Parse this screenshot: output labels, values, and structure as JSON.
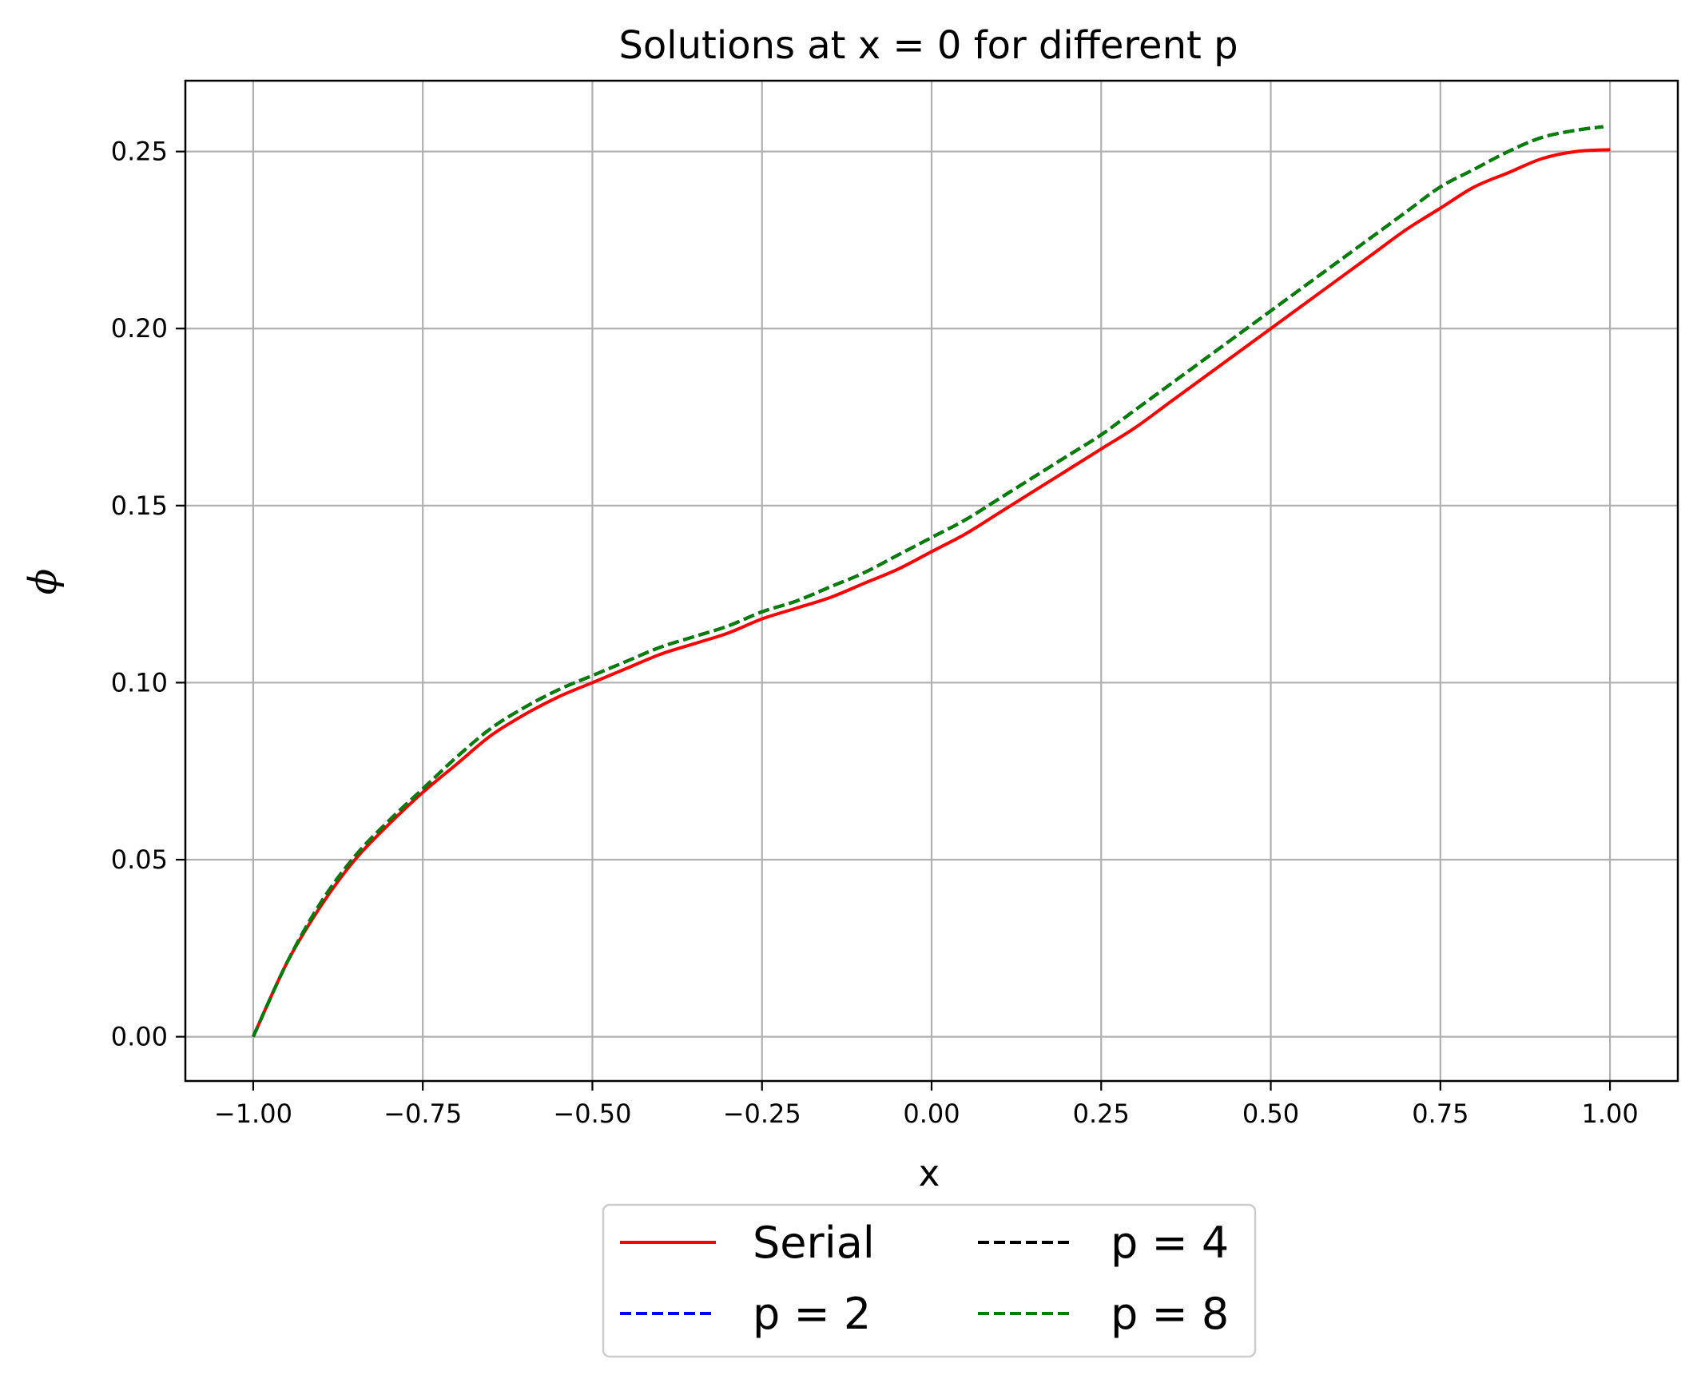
{
  "chart_data": {
    "type": "line",
    "title": "Solutions at x = 0 for different p",
    "xlabel": "x",
    "ylabel": "ϕ",
    "xlim": [
      -1.1,
      1.1
    ],
    "ylim": [
      -0.0125,
      0.27
    ],
    "xticks": [
      -1.0,
      -0.75,
      -0.5,
      -0.25,
      0.0,
      0.25,
      0.5,
      0.75,
      1.0
    ],
    "xtick_labels": [
      "−1.00",
      "−0.75",
      "−0.50",
      "−0.25",
      "0.00",
      "0.25",
      "0.50",
      "0.75",
      "1.00"
    ],
    "yticks": [
      0.0,
      0.05,
      0.1,
      0.15,
      0.2,
      0.25
    ],
    "ytick_labels": [
      "0.00",
      "0.05",
      "0.10",
      "0.15",
      "0.20",
      "0.25"
    ],
    "grid": true,
    "legend": {
      "placement": "below-center",
      "columns": 2
    },
    "series": [
      {
        "name": "Serial",
        "color": "#ff0000",
        "style": "solid",
        "x": [
          -1.0,
          -0.95,
          -0.9,
          -0.85,
          -0.8,
          -0.75,
          -0.7,
          -0.65,
          -0.6,
          -0.55,
          -0.5,
          -0.45,
          -0.4,
          -0.35,
          -0.3,
          -0.25,
          -0.2,
          -0.15,
          -0.1,
          -0.05,
          0.0,
          0.05,
          0.1,
          0.15,
          0.2,
          0.25,
          0.3,
          0.35,
          0.4,
          0.45,
          0.5,
          0.55,
          0.6,
          0.65,
          0.7,
          0.75,
          0.8,
          0.85,
          0.9,
          0.95,
          1.0
        ],
        "y": [
          0.0,
          0.021,
          0.037,
          0.05,
          0.06,
          0.069,
          0.077,
          0.085,
          0.091,
          0.096,
          0.1,
          0.104,
          0.108,
          0.111,
          0.114,
          0.118,
          0.121,
          0.124,
          0.128,
          0.132,
          0.137,
          0.142,
          0.148,
          0.154,
          0.16,
          0.166,
          0.172,
          0.179,
          0.186,
          0.193,
          0.2,
          0.207,
          0.214,
          0.221,
          0.228,
          0.234,
          0.24,
          0.244,
          0.248,
          0.25,
          0.2505
        ]
      },
      {
        "name": "p = 2",
        "color": "#0000ff",
        "style": "dashed",
        "x": [
          -1.0,
          -0.95,
          -0.9,
          -0.85,
          -0.8,
          -0.75,
          -0.7,
          -0.65,
          -0.6,
          -0.55,
          -0.5,
          -0.45,
          -0.4,
          -0.35,
          -0.3,
          -0.25,
          -0.2,
          -0.15,
          -0.1,
          -0.05,
          0.0,
          0.05,
          0.1,
          0.15,
          0.2,
          0.25,
          0.3,
          0.35,
          0.4,
          0.45,
          0.5,
          0.55,
          0.6,
          0.65,
          0.7,
          0.75,
          0.8,
          0.85,
          0.9,
          0.95,
          0.99
        ],
        "y": [
          0.0,
          0.021,
          0.038,
          0.051,
          0.061,
          0.07,
          0.079,
          0.087,
          0.093,
          0.098,
          0.102,
          0.106,
          0.11,
          0.113,
          0.116,
          0.12,
          0.123,
          0.127,
          0.131,
          0.136,
          0.141,
          0.146,
          0.152,
          0.158,
          0.164,
          0.17,
          0.177,
          0.184,
          0.191,
          0.198,
          0.205,
          0.212,
          0.219,
          0.226,
          0.233,
          0.24,
          0.245,
          0.25,
          0.254,
          0.256,
          0.257
        ]
      },
      {
        "name": "p = 4",
        "color": "#000000",
        "style": "dashed",
        "x": [
          -1.0,
          -0.95,
          -0.9,
          -0.85,
          -0.8,
          -0.75,
          -0.7,
          -0.65,
          -0.6,
          -0.55,
          -0.5,
          -0.45,
          -0.4,
          -0.35,
          -0.3,
          -0.25,
          -0.2,
          -0.15,
          -0.1,
          -0.05,
          0.0,
          0.05,
          0.1,
          0.15,
          0.2,
          0.25,
          0.3,
          0.35,
          0.4,
          0.45,
          0.5,
          0.55,
          0.6,
          0.65,
          0.7,
          0.75,
          0.8,
          0.85,
          0.9,
          0.95,
          0.99
        ],
        "y": [
          0.0,
          0.021,
          0.038,
          0.051,
          0.061,
          0.07,
          0.079,
          0.087,
          0.093,
          0.098,
          0.102,
          0.106,
          0.11,
          0.113,
          0.116,
          0.12,
          0.123,
          0.127,
          0.131,
          0.136,
          0.141,
          0.146,
          0.152,
          0.158,
          0.164,
          0.17,
          0.177,
          0.184,
          0.191,
          0.198,
          0.205,
          0.212,
          0.219,
          0.226,
          0.233,
          0.24,
          0.245,
          0.25,
          0.254,
          0.256,
          0.257
        ]
      },
      {
        "name": "p = 8",
        "color": "#008000",
        "style": "dashed",
        "x": [
          -1.0,
          -0.95,
          -0.9,
          -0.85,
          -0.8,
          -0.75,
          -0.7,
          -0.65,
          -0.6,
          -0.55,
          -0.5,
          -0.45,
          -0.4,
          -0.35,
          -0.3,
          -0.25,
          -0.2,
          -0.15,
          -0.1,
          -0.05,
          0.0,
          0.05,
          0.1,
          0.15,
          0.2,
          0.25,
          0.3,
          0.35,
          0.4,
          0.45,
          0.5,
          0.55,
          0.6,
          0.65,
          0.7,
          0.75,
          0.8,
          0.85,
          0.9,
          0.95,
          0.99
        ],
        "y": [
          0.0,
          0.021,
          0.038,
          0.051,
          0.061,
          0.07,
          0.079,
          0.087,
          0.093,
          0.098,
          0.102,
          0.106,
          0.11,
          0.113,
          0.116,
          0.12,
          0.123,
          0.127,
          0.131,
          0.136,
          0.141,
          0.146,
          0.152,
          0.158,
          0.164,
          0.17,
          0.177,
          0.184,
          0.191,
          0.198,
          0.205,
          0.212,
          0.219,
          0.226,
          0.233,
          0.24,
          0.245,
          0.25,
          0.254,
          0.256,
          0.257
        ]
      }
    ]
  }
}
